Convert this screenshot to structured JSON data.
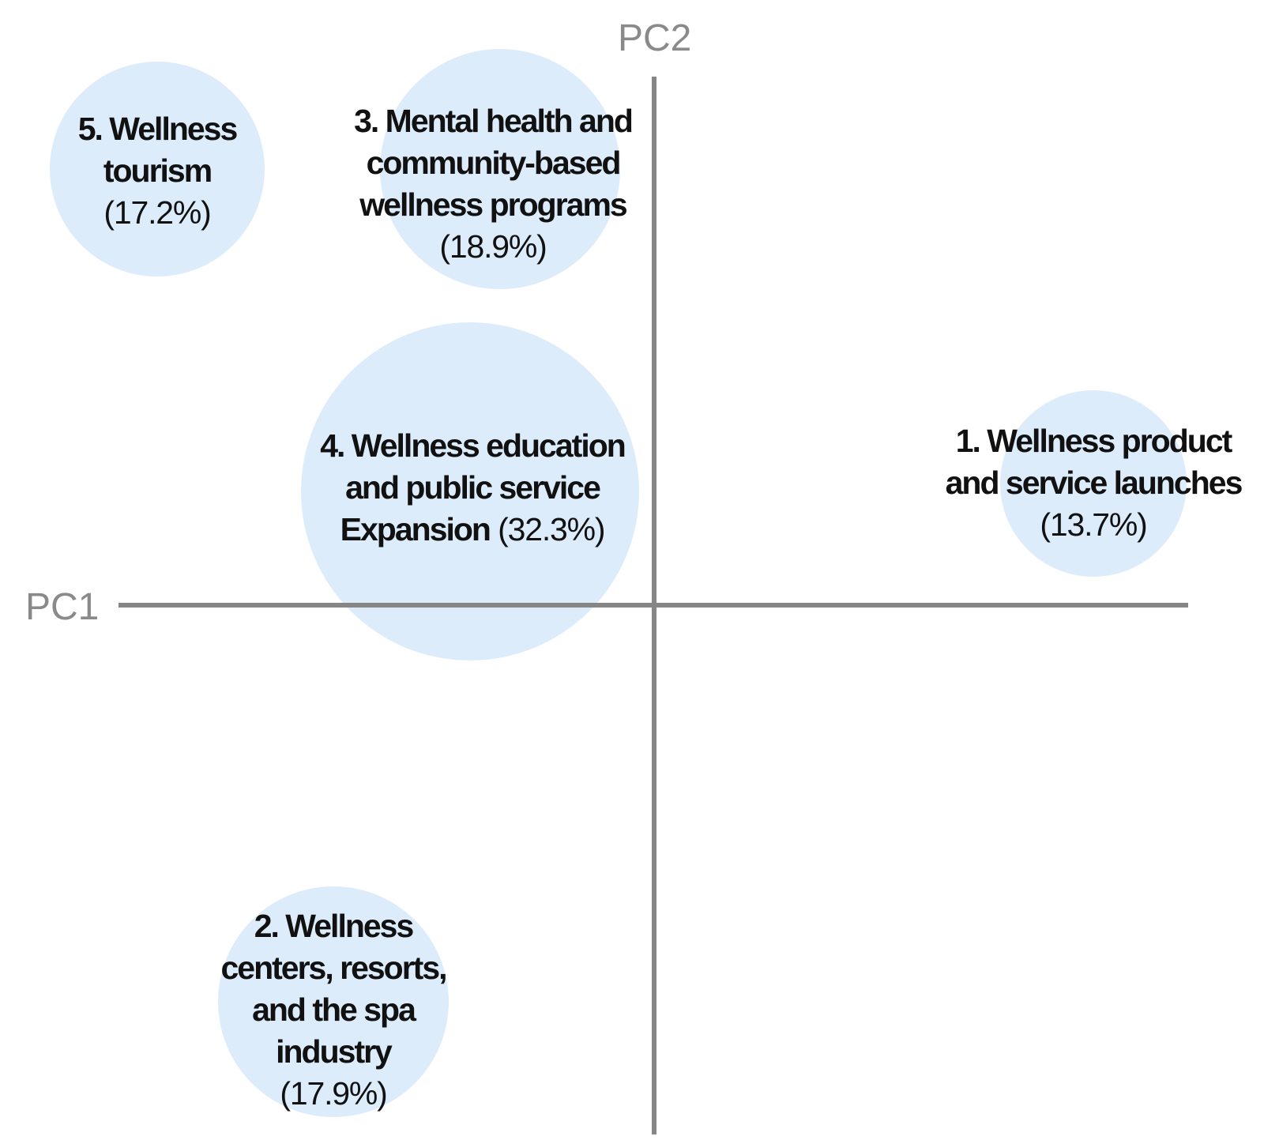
{
  "chart_data": {
    "type": "bubble-quadrant",
    "xlabel": "PC1",
    "ylabel": "PC2",
    "bubble_color": "#ddecfb",
    "axis_color": "#868686",
    "items": [
      {
        "id": "1",
        "lines": [
          "1. Wellness product",
          "and service launches"
        ],
        "pct_text": "(13.7%)",
        "pct_inline": false,
        "value": 13.7
      },
      {
        "id": "2",
        "lines": [
          "2. Wellness",
          "centers, resorts,",
          "and the spa",
          "industry"
        ],
        "pct_text": "(17.9%)",
        "pct_inline": false,
        "value": 17.9
      },
      {
        "id": "3",
        "lines": [
          "3. Mental health and",
          "community-based",
          "wellness programs"
        ],
        "pct_text": "(18.9%)",
        "pct_inline": false,
        "value": 18.9
      },
      {
        "id": "4",
        "lines": [
          "4. Wellness education",
          "and public service",
          "Expansion"
        ],
        "pct_text": "(32.3%)",
        "pct_inline": true,
        "value": 32.3
      },
      {
        "id": "5",
        "lines": [
          "5. Wellness",
          "tourism"
        ],
        "pct_text": "(17.2%)",
        "pct_inline": false,
        "value": 17.2
      }
    ]
  }
}
